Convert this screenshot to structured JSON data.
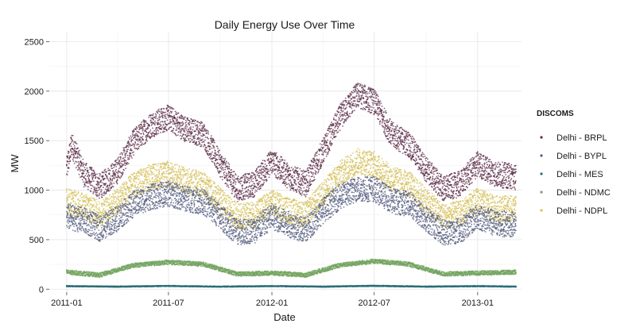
{
  "chart_data": {
    "type": "scatter",
    "title": "Daily Energy Use Over Time",
    "xlabel": "Date",
    "ylabel": "MW",
    "x_range": [
      "2010-12-01",
      "2013-03-20"
    ],
    "ylim": [
      -30,
      2600
    ],
    "x_ticks": [
      "2011-01",
      "2011-07",
      "2012-01",
      "2012-07",
      "2013-01"
    ],
    "y_ticks": [
      0,
      500,
      1000,
      1500,
      2000,
      2500
    ],
    "grid": true,
    "legend": {
      "title": "DISCOMS",
      "position": "right"
    },
    "series": [
      {
        "name": "Delhi - BRPL",
        "color": "#5b2b45",
        "points": [
          [
            "2011-01-01",
            1200
          ],
          [
            "2011-01-10",
            1450
          ],
          [
            "2011-02-01",
            1150
          ],
          [
            "2011-03-01",
            1020
          ],
          [
            "2011-04-01",
            1180
          ],
          [
            "2011-05-01",
            1480
          ],
          [
            "2011-06-01",
            1650
          ],
          [
            "2011-07-01",
            1720
          ],
          [
            "2011-08-01",
            1600
          ],
          [
            "2011-09-01",
            1550
          ],
          [
            "2011-10-01",
            1250
          ],
          [
            "2011-11-01",
            1000
          ],
          [
            "2011-12-01",
            1050
          ],
          [
            "2012-01-01",
            1280
          ],
          [
            "2012-02-01",
            1120
          ],
          [
            "2012-03-01",
            1050
          ],
          [
            "2012-04-01",
            1380
          ],
          [
            "2012-05-01",
            1720
          ],
          [
            "2012-06-01",
            1950
          ],
          [
            "2012-07-01",
            1880
          ],
          [
            "2012-08-01",
            1550
          ],
          [
            "2012-09-01",
            1450
          ],
          [
            "2012-10-01",
            1200
          ],
          [
            "2012-11-01",
            1000
          ],
          [
            "2012-12-01",
            1050
          ],
          [
            "2013-01-01",
            1250
          ],
          [
            "2013-02-01",
            1150
          ],
          [
            "2013-03-10",
            1120
          ]
        ]
      },
      {
        "name": "Delhi - BYPL",
        "color": "#525a7c",
        "points": [
          [
            "2011-01-01",
            720
          ],
          [
            "2011-02-01",
            680
          ],
          [
            "2011-03-01",
            600
          ],
          [
            "2011-04-01",
            700
          ],
          [
            "2011-05-01",
            850
          ],
          [
            "2011-06-01",
            920
          ],
          [
            "2011-07-01",
            950
          ],
          [
            "2011-08-01",
            900
          ],
          [
            "2011-09-01",
            870
          ],
          [
            "2011-10-01",
            720
          ],
          [
            "2011-11-01",
            560
          ],
          [
            "2011-12-01",
            580
          ],
          [
            "2012-01-01",
            720
          ],
          [
            "2012-02-01",
            640
          ],
          [
            "2012-03-01",
            580
          ],
          [
            "2012-04-01",
            780
          ],
          [
            "2012-05-01",
            920
          ],
          [
            "2012-06-01",
            1000
          ],
          [
            "2012-07-01",
            1000
          ],
          [
            "2012-08-01",
            880
          ],
          [
            "2012-09-01",
            850
          ],
          [
            "2012-10-01",
            700
          ],
          [
            "2012-11-01",
            560
          ],
          [
            "2012-12-01",
            580
          ],
          [
            "2013-01-01",
            720
          ],
          [
            "2013-02-01",
            650
          ],
          [
            "2013-03-10",
            640
          ]
        ]
      },
      {
        "name": "Delhi - MES",
        "color": "#2b6f78",
        "points": [
          [
            "2011-01-01",
            30
          ],
          [
            "2011-04-01",
            25
          ],
          [
            "2011-07-01",
            32
          ],
          [
            "2011-10-01",
            25
          ],
          [
            "2012-01-01",
            30
          ],
          [
            "2012-04-01",
            25
          ],
          [
            "2012-07-01",
            33
          ],
          [
            "2012-10-01",
            25
          ],
          [
            "2013-01-01",
            30
          ],
          [
            "2013-03-10",
            25
          ]
        ]
      },
      {
        "name": "Delhi - NDMC",
        "color": "#74a662",
        "points": [
          [
            "2011-01-01",
            170
          ],
          [
            "2011-03-01",
            140
          ],
          [
            "2011-05-01",
            240
          ],
          [
            "2011-07-01",
            270
          ],
          [
            "2011-09-01",
            250
          ],
          [
            "2011-11-01",
            150
          ],
          [
            "2012-01-01",
            160
          ],
          [
            "2012-03-01",
            140
          ],
          [
            "2012-05-01",
            240
          ],
          [
            "2012-07-01",
            280
          ],
          [
            "2012-09-01",
            250
          ],
          [
            "2012-11-01",
            150
          ],
          [
            "2013-01-01",
            160
          ],
          [
            "2013-03-10",
            170
          ]
        ]
      },
      {
        "name": "Delhi - NDPL",
        "color": "#d4bf55",
        "points": [
          [
            "2011-01-01",
            880
          ],
          [
            "2011-02-01",
            820
          ],
          [
            "2011-03-01",
            750
          ],
          [
            "2011-04-01",
            870
          ],
          [
            "2011-05-01",
            1050
          ],
          [
            "2011-06-01",
            1120
          ],
          [
            "2011-07-01",
            1150
          ],
          [
            "2011-08-01",
            1080
          ],
          [
            "2011-09-01",
            1050
          ],
          [
            "2011-10-01",
            880
          ],
          [
            "2011-11-01",
            720
          ],
          [
            "2011-12-01",
            740
          ],
          [
            "2012-01-01",
            860
          ],
          [
            "2012-02-01",
            780
          ],
          [
            "2012-03-01",
            740
          ],
          [
            "2012-04-01",
            950
          ],
          [
            "2012-05-01",
            1150
          ],
          [
            "2012-06-01",
            1280
          ],
          [
            "2012-07-01",
            1250
          ],
          [
            "2012-08-01",
            1100
          ],
          [
            "2012-09-01",
            1050
          ],
          [
            "2012-10-01",
            880
          ],
          [
            "2012-11-01",
            720
          ],
          [
            "2012-12-01",
            750
          ],
          [
            "2013-01-01",
            880
          ],
          [
            "2013-02-01",
            800
          ],
          [
            "2013-03-10",
            800
          ]
        ]
      }
    ]
  }
}
